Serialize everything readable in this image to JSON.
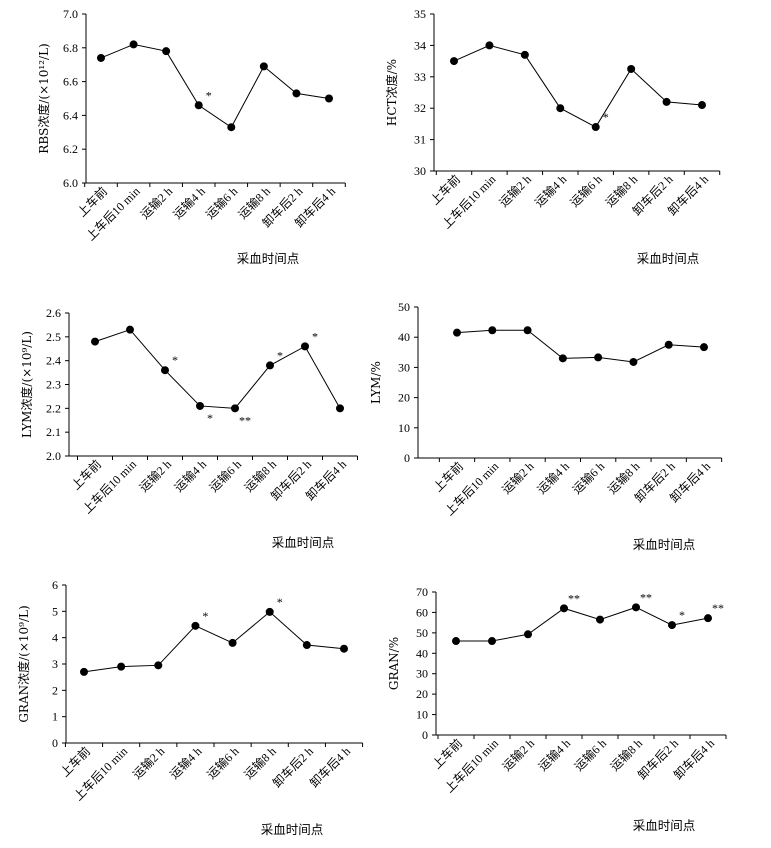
{
  "chart_data": [
    {
      "type": "line",
      "ylabel": "RBS浓度/(×10¹²/L)",
      "xlabel": "采血时间点",
      "categories": [
        "上车前",
        "上车后10 min",
        "运输2 h",
        "运输4 h",
        "运输6 h",
        "运输8 h",
        "卸车后2 h",
        "卸车后4 h"
      ],
      "values": [
        6.74,
        6.82,
        6.78,
        6.46,
        6.33,
        6.69,
        6.53,
        6.5
      ],
      "ylim": [
        6.0,
        7.0
      ],
      "yticks": [
        "6.0",
        "6.2",
        "6.4",
        "6.6",
        "6.8",
        "7.0"
      ],
      "annotations": [
        {
          "index": 3,
          "text": "*"
        }
      ]
    },
    {
      "type": "line",
      "ylabel": "HCT浓度/%",
      "xlabel": "采血时间点",
      "categories": [
        "上车前",
        "上车后10 min",
        "运输2 h",
        "运输4 h",
        "运输6 h",
        "运输8 h",
        "卸车后2 h",
        "卸车后4 h"
      ],
      "values": [
        33.5,
        34.0,
        33.7,
        32.0,
        31.4,
        33.25,
        32.2,
        32.1
      ],
      "ylim": [
        30,
        35
      ],
      "yticks": [
        "30",
        "31",
        "32",
        "33",
        "34",
        "35"
      ],
      "annotations": [
        {
          "index": 4,
          "text": "*"
        }
      ]
    },
    {
      "type": "line",
      "ylabel": "LYM浓度/(×10⁹/L)",
      "xlabel": "采血时间点",
      "categories": [
        "上车前",
        "上车后10 min",
        "运输2 h",
        "运输4 h",
        "运输6 h",
        "运输8 h",
        "卸车后2 h",
        "卸车后4 h"
      ],
      "values": [
        2.48,
        2.53,
        2.36,
        2.21,
        2.2,
        2.38,
        2.46,
        2.2
      ],
      "ylim": [
        2.0,
        2.6
      ],
      "yticks": [
        "2.0",
        "2.1",
        "2.2",
        "2.3",
        "2.4",
        "2.5",
        "2.6"
      ],
      "annotations": [
        {
          "index": 2,
          "text": "*"
        },
        {
          "index": 3,
          "text": "*",
          "below": true
        },
        {
          "index": 4,
          "text": "**",
          "below": true
        },
        {
          "index": 5,
          "text": "*"
        },
        {
          "index": 6,
          "text": "*"
        }
      ]
    },
    {
      "type": "line",
      "ylabel": "LYM/%",
      "xlabel": "采血时间点",
      "categories": [
        "上车前",
        "上车后10 min",
        "运输2 h",
        "运输4 h",
        "运输6 h",
        "运输8 h",
        "卸车后2 h",
        "卸车后4 h"
      ],
      "values": [
        41.5,
        42.3,
        42.3,
        33.0,
        33.3,
        31.8,
        37.5,
        36.7
      ],
      "ylim": [
        0,
        50
      ],
      "yticks": [
        "0",
        "10",
        "20",
        "30",
        "40",
        "50"
      ],
      "annotations": []
    },
    {
      "type": "line",
      "ylabel": "GRAN浓度/(×10⁹/L)",
      "xlabel": "采血时间点",
      "categories": [
        "上车前",
        "上车后10 min",
        "运输2 h",
        "运输4 h",
        "运输6 h",
        "运输8 h",
        "卸车后2 h",
        "卸车后4 h"
      ],
      "values": [
        2.7,
        2.9,
        2.95,
        4.45,
        3.8,
        4.98,
        3.72,
        3.58
      ],
      "ylim": [
        0,
        6
      ],
      "yticks": [
        "0",
        "1",
        "2",
        "3",
        "4",
        "5",
        "6"
      ],
      "annotations": [
        {
          "index": 3,
          "text": "*"
        },
        {
          "index": 5,
          "text": "*"
        }
      ]
    },
    {
      "type": "line",
      "ylabel": "GRAN/%",
      "xlabel": "采血时间点",
      "categories": [
        "上车前",
        "上车后10 min",
        "运输2 h",
        "运输4 h",
        "运输6 h",
        "运输8 h",
        "卸车后2 h",
        "卸车后4 h"
      ],
      "values": [
        46.0,
        46.0,
        49.3,
        62.0,
        56.5,
        62.5,
        53.8,
        57.2
      ],
      "ylim": [
        0,
        70
      ],
      "yticks": [
        "0",
        "10",
        "20",
        "30",
        "40",
        "50",
        "60",
        "70"
      ],
      "annotations": [
        {
          "index": 3,
          "text": "**"
        },
        {
          "index": 5,
          "text": "**"
        },
        {
          "index": 6,
          "text": "*"
        },
        {
          "index": 7,
          "text": "**"
        }
      ]
    }
  ]
}
